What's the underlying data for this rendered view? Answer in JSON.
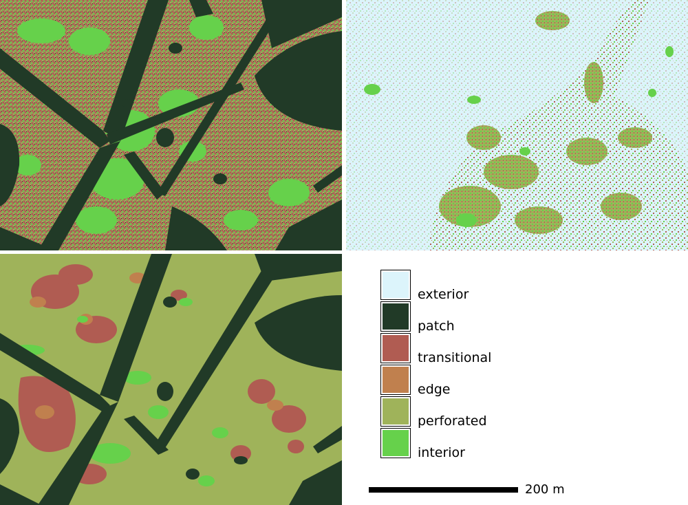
{
  "colors": {
    "exterior": "#dcf4fb",
    "patch": "#213a27",
    "transitional": "#b05c52",
    "edge": "#c0804e",
    "perforated": "#9fb35a",
    "interior": "#66d14b"
  },
  "legend": {
    "items": [
      {
        "key": "exterior",
        "label": "exterior"
      },
      {
        "key": "patch",
        "label": "patch"
      },
      {
        "key": "transitional",
        "label": "transitional"
      },
      {
        "key": "edge",
        "label": "edge"
      },
      {
        "key": "perforated",
        "label": "perforated"
      },
      {
        "key": "interior",
        "label": "interior"
      }
    ]
  },
  "scalebar": {
    "label": "200 m"
  }
}
